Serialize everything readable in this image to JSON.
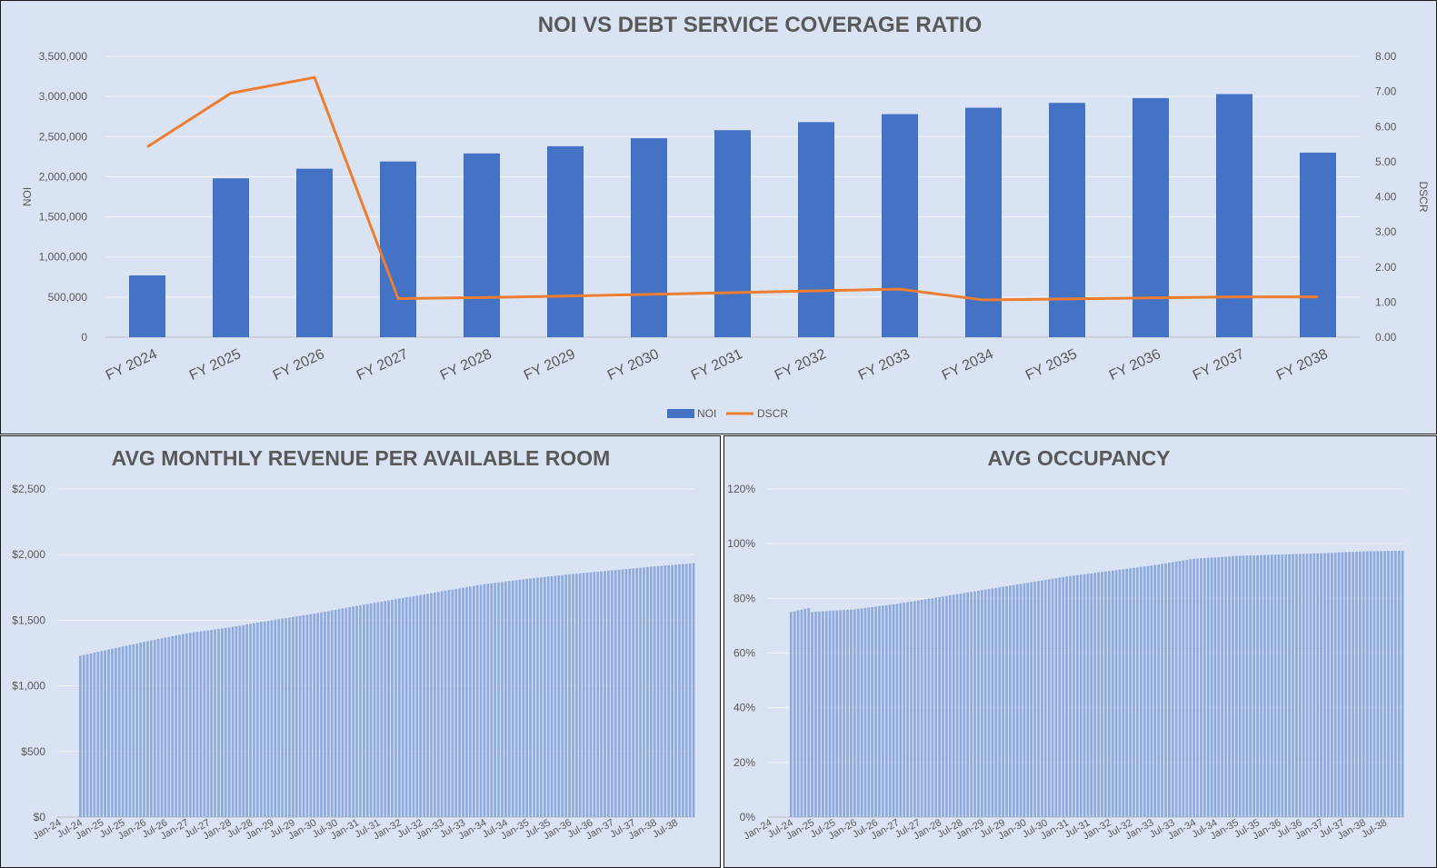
{
  "chart_data": [
    {
      "type": "bar",
      "title": "NOI VS DEBT SERVICE COVERAGE RATIO",
      "categories": [
        "FY 2024",
        "FY 2025",
        "FY 2026",
        "FY 2027",
        "FY 2028",
        "FY 2029",
        "FY 2030",
        "FY 2031",
        "FY 2032",
        "FY 2033",
        "FY 2034",
        "FY 2035",
        "FY 2036",
        "FY 2037",
        "FY 2038"
      ],
      "ylabel": "NOI",
      "y2label": "DSCR",
      "ylim": [
        0,
        3500000
      ],
      "y2lim": [
        0,
        8
      ],
      "yticks": [
        "0",
        "500,000",
        "1,000,000",
        "1,500,000",
        "2,000,000",
        "2,500,000",
        "3,000,000",
        "3,500,000"
      ],
      "y2ticks": [
        "0.00",
        "1.00",
        "2.00",
        "3.00",
        "4.00",
        "5.00",
        "6.00",
        "7.00",
        "8.00"
      ],
      "series": [
        {
          "name": "NOI",
          "type": "bar",
          "color": "#4472c4",
          "values": [
            770000,
            1980000,
            2100000,
            2190000,
            2290000,
            2380000,
            2480000,
            2580000,
            2680000,
            2780000,
            2860000,
            2920000,
            2980000,
            3030000,
            2300000
          ]
        },
        {
          "name": "DSCR",
          "type": "line",
          "color": "#ed7d31",
          "values": [
            5.42,
            6.95,
            7.4,
            1.1,
            1.13,
            1.17,
            1.22,
            1.27,
            1.32,
            1.37,
            1.06,
            1.09,
            1.12,
            1.15,
            1.15
          ]
        }
      ],
      "legend": "bottom",
      "grid": true
    },
    {
      "type": "bar",
      "title": "AVG MONTHLY REVENUE PER AVAILABLE ROOM",
      "x_start": "Jan-24",
      "x_end": "Dec-38",
      "xticks": [
        "Jan-24",
        "Jul-24",
        "Jan-25",
        "Jul-25",
        "Jan-26",
        "Jul-26",
        "Jan-27",
        "Jul-27",
        "Jan-28",
        "Jul-28",
        "Jan-29",
        "Jul-29",
        "Jan-30",
        "Jul-30",
        "Jan-31",
        "Jul-31",
        "Jan-32",
        "Jul-32",
        "Jan-33",
        "Jul-33",
        "Jan-34",
        "Jul-34",
        "Jan-35",
        "Jul-35",
        "Jan-36",
        "Jul-36",
        "Jan-37",
        "Jul-37",
        "Jan-38",
        "Jul-38"
      ],
      "ylim": [
        0,
        2500
      ],
      "yticks": [
        "$0",
        "$500",
        "$1,000",
        "$1,500",
        "$2,000",
        "$2,500"
      ],
      "bars_from": "Jul-24",
      "anchors": [
        {
          "x": "Jul-24",
          "y": 1230
        },
        {
          "x": "Jan-25",
          "y": 1265
        },
        {
          "x": "Jul-25",
          "y": 1300
        },
        {
          "x": "Jan-26",
          "y": 1335
        },
        {
          "x": "Jan-27",
          "y": 1400
        },
        {
          "x": "Jan-28",
          "y": 1445
        },
        {
          "x": "Jan-29",
          "y": 1500
        },
        {
          "x": "Jan-30",
          "y": 1550
        },
        {
          "x": "Jan-31",
          "y": 1610
        },
        {
          "x": "Jan-32",
          "y": 1665
        },
        {
          "x": "Jan-33",
          "y": 1720
        },
        {
          "x": "Jan-34",
          "y": 1775
        },
        {
          "x": "Jan-35",
          "y": 1815
        },
        {
          "x": "Jan-36",
          "y": 1850
        },
        {
          "x": "Jan-37",
          "y": 1880
        },
        {
          "x": "Jan-38",
          "y": 1910
        },
        {
          "x": "Dec-38",
          "y": 1935
        }
      ],
      "color": "#8faadc",
      "grid": true
    },
    {
      "type": "bar",
      "title": "AVG OCCUPANCY",
      "x_start": "Jan-24",
      "x_end": "Dec-38",
      "xticks": [
        "Jan-24",
        "Jul-24",
        "Jan-25",
        "Jul-25",
        "Jan-26",
        "Jul-26",
        "Jan-27",
        "Jul-27",
        "Jan-28",
        "Jul-28",
        "Jan-29",
        "Jul-29",
        "Jan-30",
        "Jul-30",
        "Jan-31",
        "Jul-31",
        "Jan-32",
        "Jul-32",
        "Jan-33",
        "Jul-33",
        "Jan-34",
        "Jul-34",
        "Jan-35",
        "Jul-35",
        "Jan-36",
        "Jul-36",
        "Jan-37",
        "Jul-37",
        "Jan-38",
        "Jul-38"
      ],
      "ylim": [
        0,
        120
      ],
      "yticks": [
        "0%",
        "20%",
        "40%",
        "60%",
        "80%",
        "100%",
        "120%"
      ],
      "bars_from": "Jul-24",
      "anchors": [
        {
          "x": "Jul-24",
          "y": 75
        },
        {
          "x": "Dec-24",
          "y": 76.5
        },
        {
          "x": "Jan-25",
          "y": 75
        },
        {
          "x": "Jan-26",
          "y": 76
        },
        {
          "x": "Jan-27",
          "y": 78
        },
        {
          "x": "Jan-28",
          "y": 80.5
        },
        {
          "x": "Jan-29",
          "y": 83
        },
        {
          "x": "Jan-30",
          "y": 85.5
        },
        {
          "x": "Jan-31",
          "y": 88
        },
        {
          "x": "Jan-32",
          "y": 90
        },
        {
          "x": "Jan-33",
          "y": 92
        },
        {
          "x": "Jan-34",
          "y": 94.5
        },
        {
          "x": "Jan-35",
          "y": 95.5
        },
        {
          "x": "Jan-36",
          "y": 96
        },
        {
          "x": "Jan-37",
          "y": 96.5
        },
        {
          "x": "Jan-38",
          "y": 97.2
        },
        {
          "x": "Dec-38",
          "y": 97.4
        }
      ],
      "color": "#8faadc",
      "grid": true
    }
  ]
}
